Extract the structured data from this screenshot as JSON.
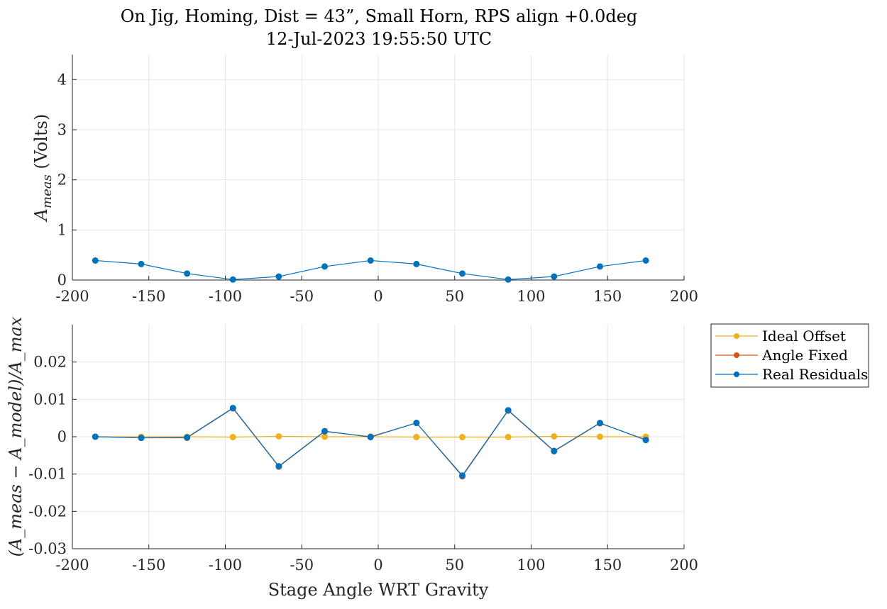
{
  "figure": {
    "title_line1": "On Jig, Homing, Dist = 43”, Small Horn, RPS align +0.0deg",
    "title_line2": "12-Jul-2023 19:55:50 UTC"
  },
  "colors": {
    "ideal": "#EDB120",
    "fixed": "#D95319",
    "real": "#0072BD",
    "grid": "#e6e6e6",
    "axis": "#262626"
  },
  "chart_data": [
    {
      "type": "line",
      "title": "On Jig, Homing, Dist = 43”, Small Horn, RPS align +0.0deg\n12-Jul-2023 19:55:50 UTC",
      "xlabel": "",
      "ylabel_main": "A",
      "ylabel_sub": "meas",
      "ylabel_rest": " (Volts)",
      "xlim": [
        -200,
        200
      ],
      "ylim": [
        0,
        4.5
      ],
      "xticks": [
        "-200",
        "-150",
        "-100",
        "-50",
        "0",
        "50",
        "100",
        "150",
        "200"
      ],
      "yticks": [
        "0",
        "1",
        "2",
        "3",
        "4"
      ],
      "grid": true,
      "x": [
        -185,
        -155,
        -125,
        -95,
        -65,
        -35,
        -5,
        25,
        55,
        85,
        115,
        145,
        175
      ],
      "series": [
        {
          "values": [
            0.39,
            0.32,
            0.13,
            0.01,
            0.07,
            0.27,
            0.39,
            0.32,
            0.13,
            0.01,
            0.07,
            0.27,
            0.39
          ]
        }
      ]
    },
    {
      "type": "line",
      "xlabel": "Stage Angle WRT Gravity",
      "ylabel": "(A_meas − A_model)/A_max",
      "xlim": [
        -200,
        200
      ],
      "ylim": [
        -0.03,
        0.03
      ],
      "xticks": [
        "-200",
        "-150",
        "-100",
        "-50",
        "0",
        "50",
        "100",
        "150",
        "200"
      ],
      "yticks": [
        "-0.03",
        "-0.02",
        "-0.01",
        "0",
        "0.01",
        "0.02"
      ],
      "grid": true,
      "legend": "outside-top-right",
      "x": [
        -185,
        -155,
        -125,
        -95,
        -65,
        -35,
        -5,
        25,
        55,
        85,
        115,
        145,
        175
      ],
      "series": [
        {
          "name": "Ideal Offset",
          "values": [
            0,
            0,
            0,
            -0.0001,
            0.0001,
            0,
            0,
            -0.0001,
            -0.0001,
            -0.0001,
            0.0001,
            0,
            0
          ]
        },
        {
          "name": "Angle Fixed",
          "values": [
            0,
            -0.0003,
            -0.0003,
            0.0076,
            -0.008,
            0.0014,
            0,
            0.0037,
            -0.0106,
            0.007,
            -0.0039,
            0.0036,
            -0.0008
          ]
        },
        {
          "name": "Real Residuals",
          "values": [
            0,
            -0.0003,
            -0.0002,
            0.0077,
            -0.0079,
            0.0015,
            -0.0001,
            0.0037,
            -0.0104,
            0.0071,
            -0.0038,
            0.0037,
            -0.0009
          ]
        }
      ]
    }
  ]
}
